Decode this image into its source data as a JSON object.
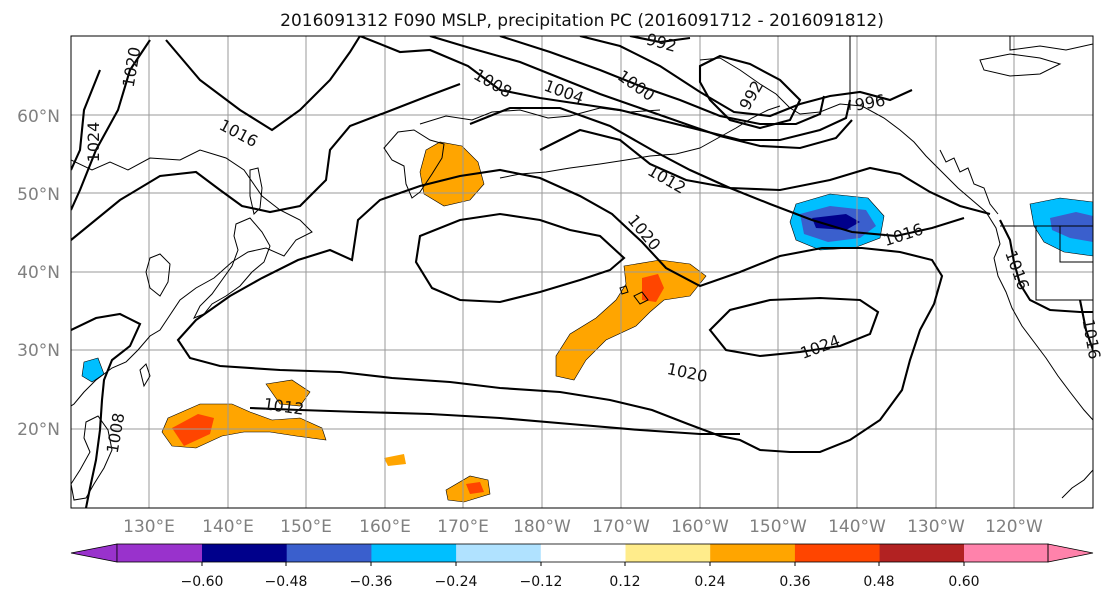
{
  "title": "2016091312 F090 MSLP, precipitation PC (2016091712 - 2016091812)",
  "lat_labels": [
    "60°N",
    "50°N",
    "40°N",
    "30°N",
    "20°N"
  ],
  "lon_labels": [
    "130°E",
    "140°E",
    "150°E",
    "160°E",
    "170°E",
    "180°W",
    "170°W",
    "160°W",
    "150°W",
    "140°W",
    "130°W",
    "120°W"
  ],
  "isobar_labels": [
    "1020",
    "1024",
    "1016",
    "1008",
    "1004",
    "1000",
    "992",
    "992",
    "996",
    "1012",
    "1020",
    "1016",
    "1012",
    "1008",
    "1020",
    "1024",
    "1016",
    "1016"
  ],
  "colorbar": {
    "ticks": [
      "−0.60",
      "−0.48",
      "−0.36",
      "−0.24",
      "−0.12",
      "0.12",
      "0.24",
      "0.36",
      "0.48",
      "0.60"
    ],
    "colors": [
      "#9932cc",
      "#00008b",
      "#3a5fcd",
      "#00bfff",
      "#b0e2ff",
      "#ffffff",
      "#ffec8b",
      "#ffa500",
      "#ff4500",
      "#b22222",
      "#ff82ab"
    ]
  }
}
